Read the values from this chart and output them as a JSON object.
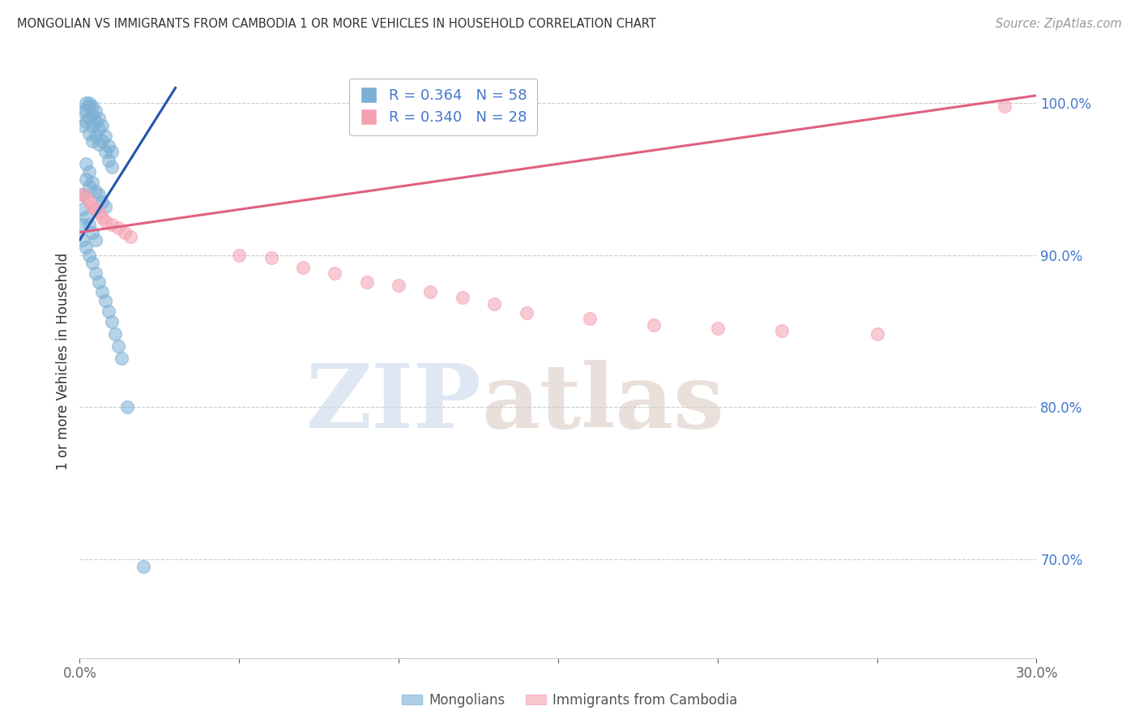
{
  "title": "MONGOLIAN VS IMMIGRANTS FROM CAMBODIA 1 OR MORE VEHICLES IN HOUSEHOLD CORRELATION CHART",
  "source": "Source: ZipAtlas.com",
  "ylabel": "1 or more Vehicles in Household",
  "xlim": [
    0.0,
    0.3
  ],
  "ylim": [
    0.635,
    1.025
  ],
  "right_yticks": [
    1.0,
    0.9,
    0.8,
    0.7
  ],
  "right_yticklabels": [
    "100.0%",
    "90.0%",
    "80.0%",
    "70.0%"
  ],
  "xtick_positions": [
    0.0,
    0.05,
    0.1,
    0.15,
    0.2,
    0.25,
    0.3
  ],
  "xtick_labels": [
    "0.0%",
    "",
    "",
    "",
    "",
    "",
    "30.0%"
  ],
  "watermark_zip": "ZIP",
  "watermark_atlas": "atlas",
  "blue_scatter_color": "#7BAFD4",
  "pink_scatter_color": "#F4A0B0",
  "blue_line_color": "#2255AA",
  "pink_line_color": "#E06080",
  "legend_blue_label": "Mongolians",
  "legend_pink_label": "Immigrants from Cambodia",
  "legend_blue_R": "0.364",
  "legend_blue_N": "58",
  "legend_pink_R": "0.340",
  "legend_pink_N": "28",
  "blue_line_x": [
    0.0,
    0.03
  ],
  "blue_line_y": [
    0.91,
    1.01
  ],
  "pink_line_x": [
    0.0,
    0.3
  ],
  "pink_line_y": [
    0.915,
    1.005
  ],
  "mongo_x": [
    0.001,
    0.001,
    0.002,
    0.002,
    0.002,
    0.003,
    0.003,
    0.003,
    0.003,
    0.004,
    0.004,
    0.004,
    0.004,
    0.005,
    0.005,
    0.005,
    0.006,
    0.006,
    0.006,
    0.007,
    0.007,
    0.008,
    0.008,
    0.009,
    0.009,
    0.01,
    0.01,
    0.002,
    0.002,
    0.003,
    0.003,
    0.004,
    0.005,
    0.006,
    0.007,
    0.008,
    0.001,
    0.001,
    0.001,
    0.002,
    0.003,
    0.004,
    0.005,
    0.001,
    0.002,
    0.003,
    0.004,
    0.005,
    0.006,
    0.007,
    0.008,
    0.009,
    0.01,
    0.011,
    0.012,
    0.013,
    0.015,
    0.02
  ],
  "mongo_y": [
    0.995,
    0.985,
    1.0,
    0.995,
    0.988,
    1.0,
    0.998,
    0.99,
    0.98,
    0.998,
    0.992,
    0.985,
    0.975,
    0.995,
    0.988,
    0.978,
    0.99,
    0.983,
    0.973,
    0.985,
    0.975,
    0.978,
    0.968,
    0.972,
    0.962,
    0.968,
    0.958,
    0.96,
    0.95,
    0.955,
    0.945,
    0.948,
    0.942,
    0.94,
    0.935,
    0.932,
    0.94,
    0.93,
    0.92,
    0.925,
    0.92,
    0.915,
    0.91,
    0.91,
    0.905,
    0.9,
    0.895,
    0.888,
    0.882,
    0.876,
    0.87,
    0.863,
    0.856,
    0.848,
    0.84,
    0.832,
    0.8,
    0.695
  ],
  "camb_x": [
    0.001,
    0.002,
    0.003,
    0.004,
    0.005,
    0.006,
    0.007,
    0.008,
    0.01,
    0.012,
    0.014,
    0.016,
    0.05,
    0.06,
    0.07,
    0.08,
    0.09,
    0.1,
    0.11,
    0.12,
    0.13,
    0.14,
    0.16,
    0.18,
    0.2,
    0.22,
    0.25,
    0.29
  ],
  "camb_y": [
    0.94,
    0.938,
    0.935,
    0.932,
    0.93,
    0.928,
    0.925,
    0.922,
    0.92,
    0.918,
    0.915,
    0.912,
    0.9,
    0.898,
    0.892,
    0.888,
    0.882,
    0.88,
    0.876,
    0.872,
    0.868,
    0.862,
    0.858,
    0.854,
    0.852,
    0.85,
    0.848,
    0.998
  ]
}
